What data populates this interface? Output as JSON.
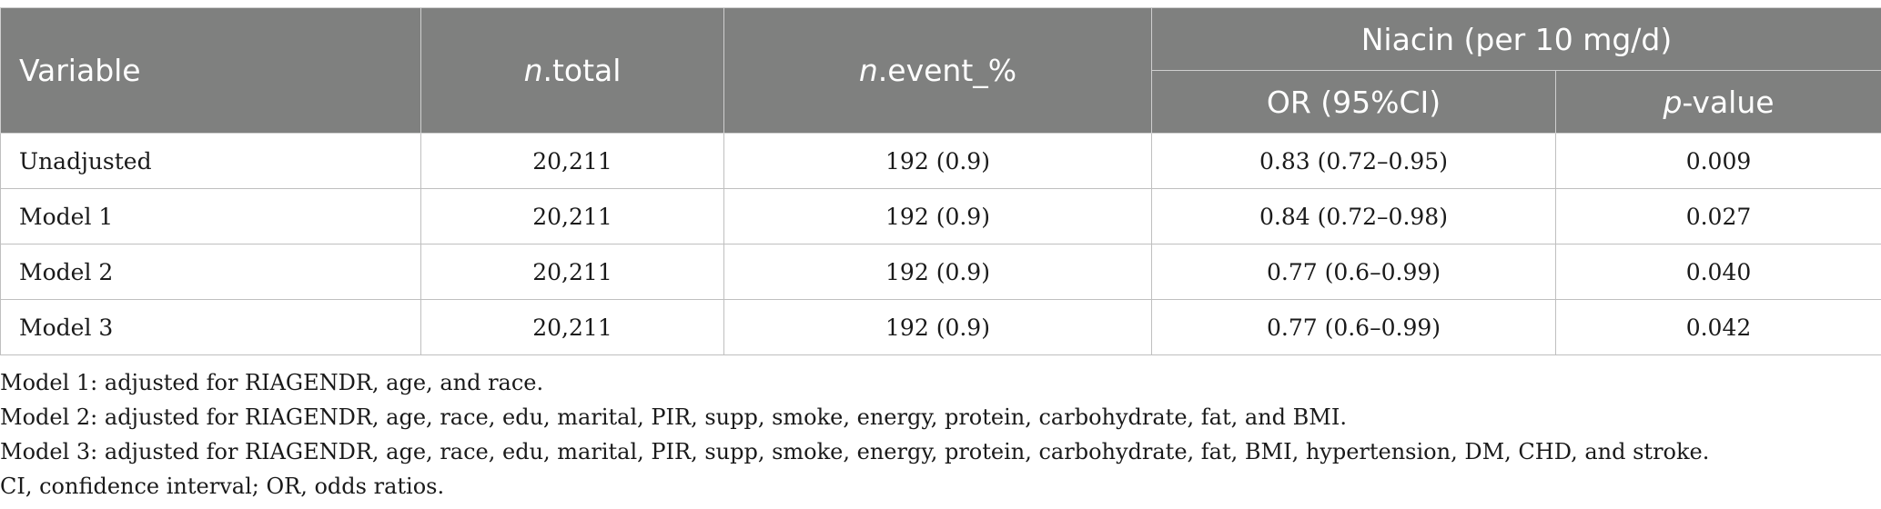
{
  "table": {
    "headers": {
      "variable": "Variable",
      "n_total_prefix": "n",
      "n_total_suffix": ".total",
      "n_event_prefix": "n",
      "n_event_suffix": ".event_%",
      "group": "Niacin (per 10 mg/d)",
      "or": "OR (95%CI)",
      "p_prefix": "p",
      "p_suffix": "-value"
    },
    "rows": [
      {
        "variable": "Unadjusted",
        "n_total": "20,211",
        "n_event": "192 (0.9)",
        "or": "0.83 (0.72–0.95)",
        "p": "0.009"
      },
      {
        "variable": "Model 1",
        "n_total": "20,211",
        "n_event": "192 (0.9)",
        "or": "0.84 (0.72–0.98)",
        "p": "0.027"
      },
      {
        "variable": "Model 2",
        "n_total": "20,211",
        "n_event": "192 (0.9)",
        "or": "0.77 (0.6–0.99)",
        "p": "0.040"
      },
      {
        "variable": "Model 3",
        "n_total": "20,211",
        "n_event": "192 (0.9)",
        "or": "0.77 (0.6–0.99)",
        "p": "0.042"
      }
    ]
  },
  "notes": [
    "Model 1: adjusted for RIAGENDR, age, and race.",
    "Model 2: adjusted for RIAGENDR, age, race, edu, marital, PIR, supp, smoke, energy, protein, carbohydrate, fat, and BMI.",
    "Model 3: adjusted for RIAGENDR, age, race, edu, marital, PIR, supp, smoke, energy, protein, carbohydrate, fat, BMI, hypertension, DM, CHD, and stroke.",
    "CI, confidence interval; OR, odds ratios."
  ]
}
